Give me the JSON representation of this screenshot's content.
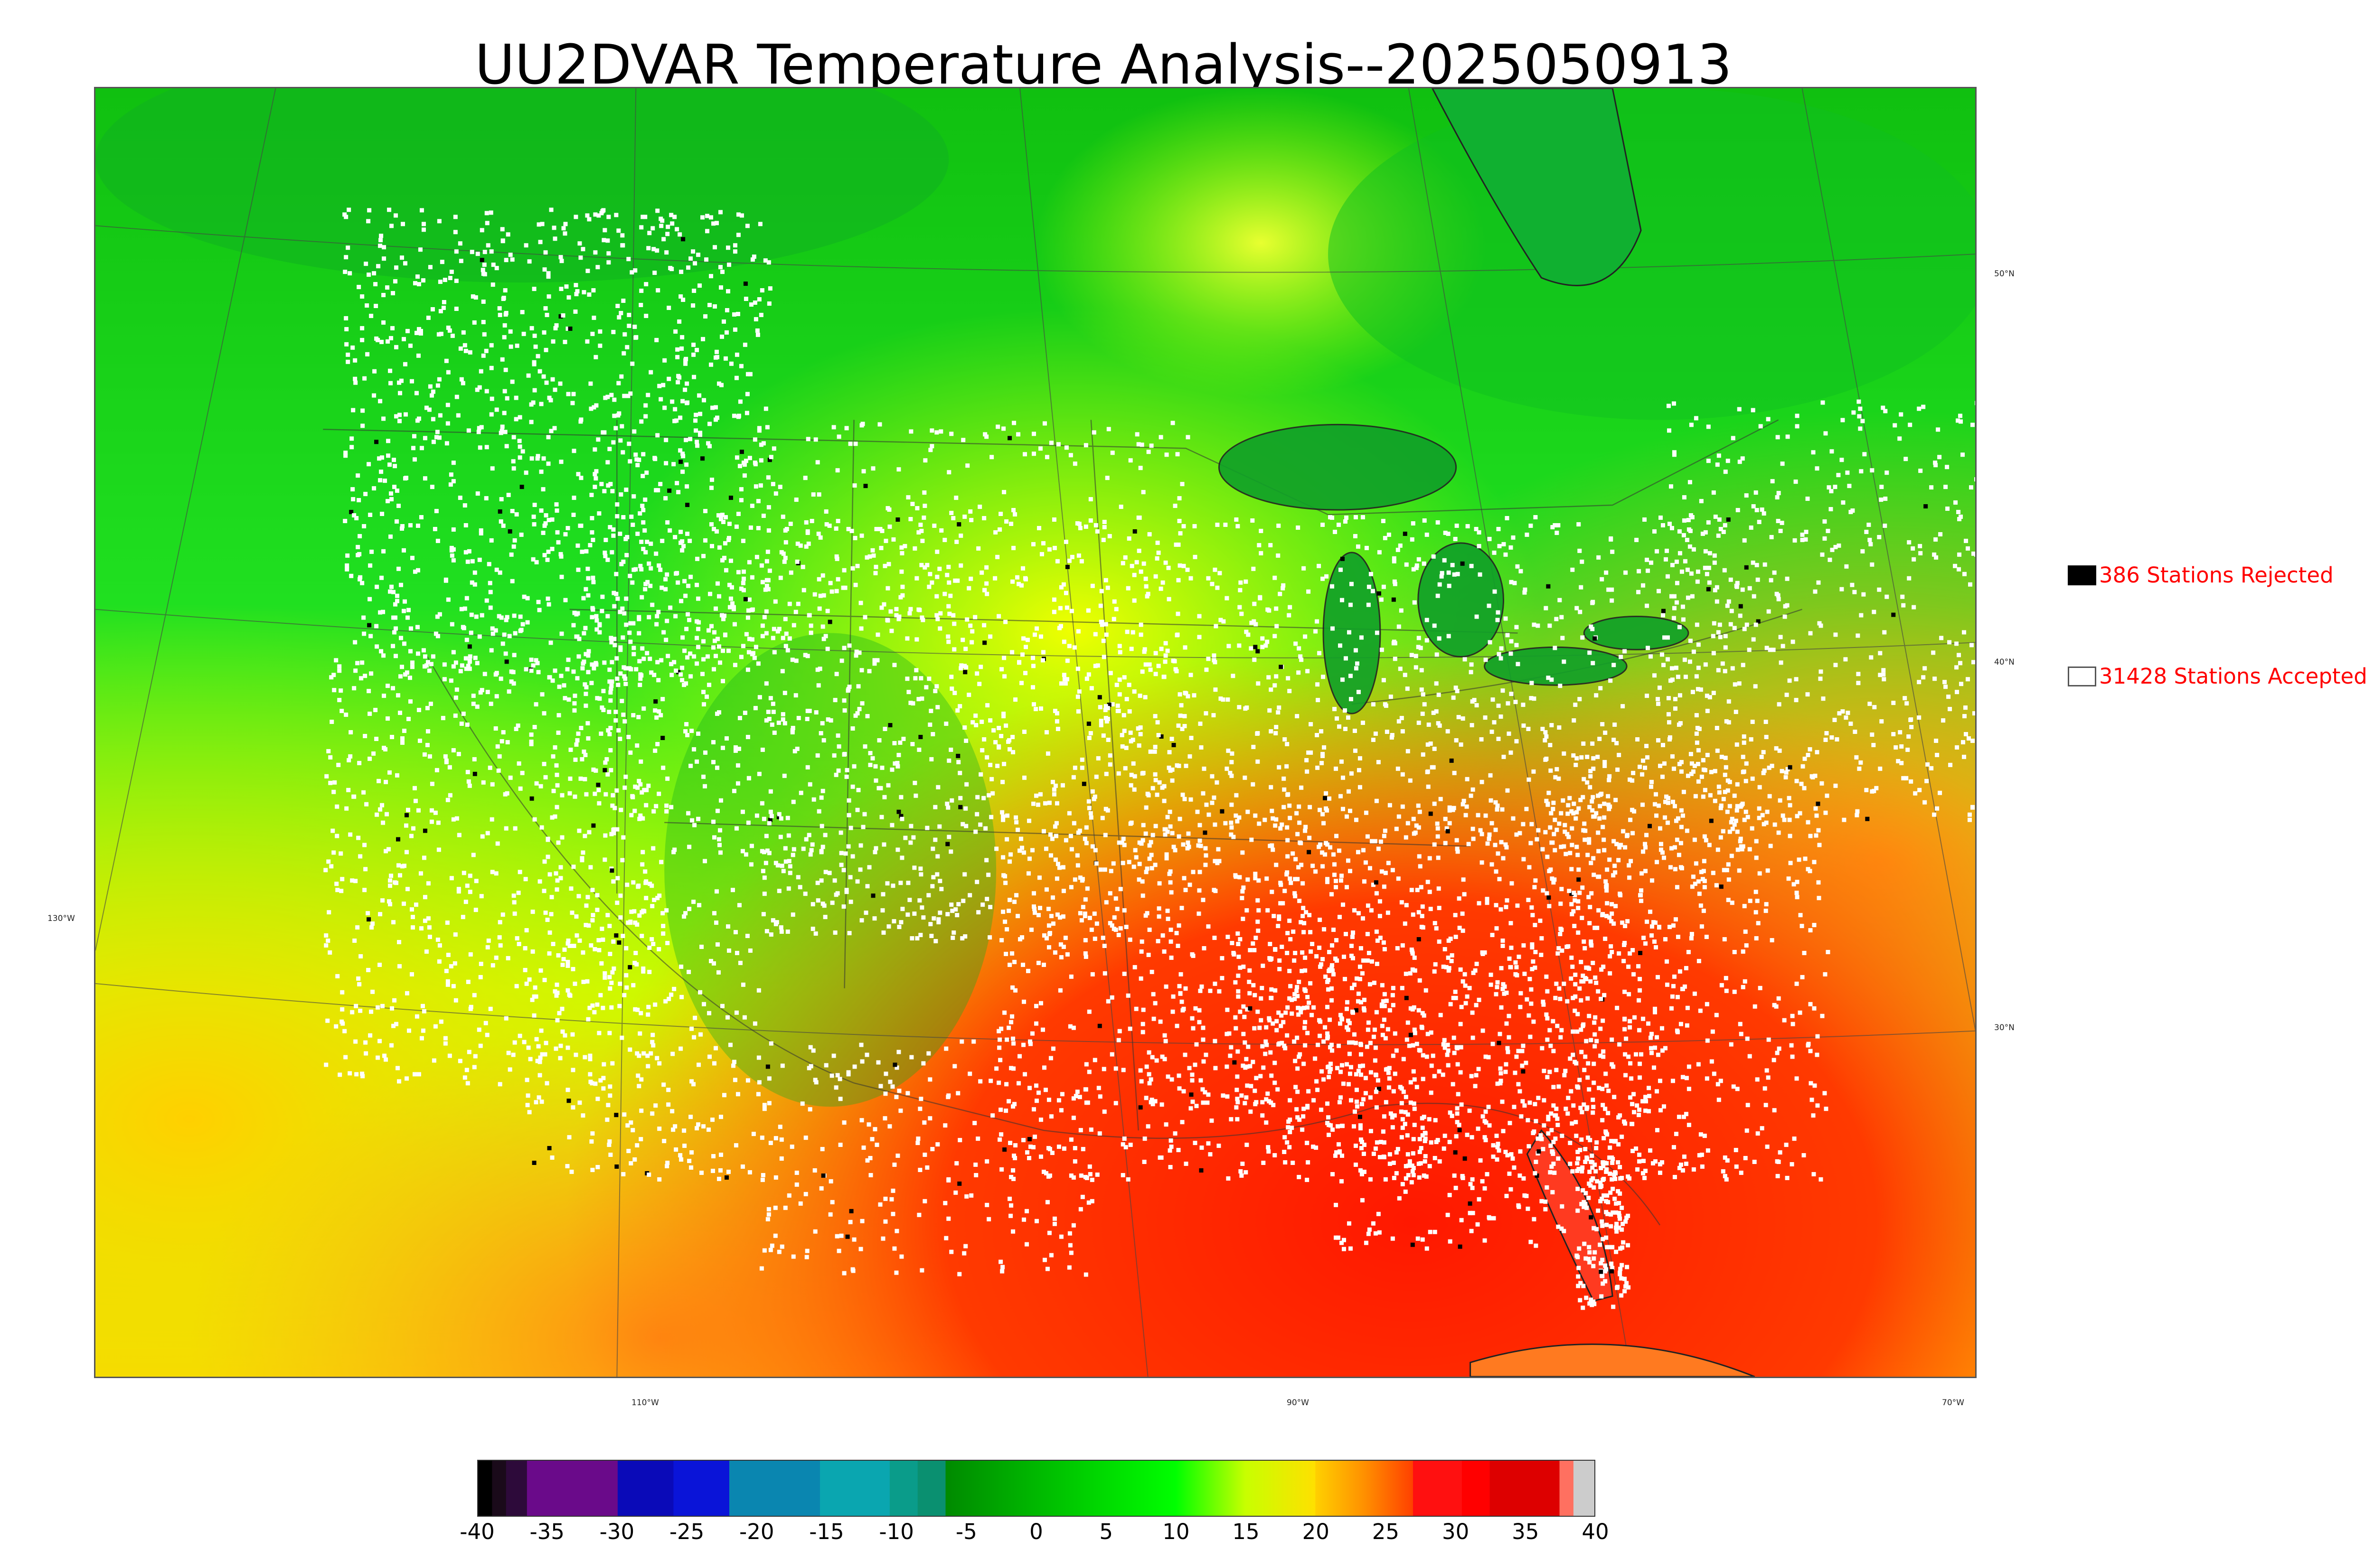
{
  "title": "UU2DVAR Temperature Analysis--2025050913",
  "legend": {
    "rejected_label": "386 Stations Rejected",
    "accepted_label": "31428 Stations Accepted"
  },
  "graticule_labels": {
    "lat_50": "50°N",
    "lat_40": "40°N",
    "lat_30": "30°N",
    "lon_130": "130°W",
    "lon_110": "110°W",
    "lon_90": "90°W",
    "lon_70": "70°W"
  },
  "colorbar": {
    "ticks": [
      "-40",
      "-35",
      "-30",
      "-25",
      "-20",
      "-15",
      "-10",
      "-5",
      "0",
      "5",
      "10",
      "15",
      "20",
      "25",
      "30",
      "35",
      "40"
    ],
    "range": [
      -40,
      40
    ],
    "segments": [
      {
        "from": -40,
        "to": -39,
        "color": "#000000"
      },
      {
        "from": -39,
        "to": -38,
        "color": "#1a0a1a"
      },
      {
        "from": -38,
        "to": -36.5,
        "color": "#2d0a3a"
      },
      {
        "from": -36.5,
        "to": -30,
        "color": "#6a0a8a"
      },
      {
        "from": -30,
        "to": -26,
        "color": "#0a0ab8"
      },
      {
        "from": -26,
        "to": -22,
        "color": "#0a14d8"
      },
      {
        "from": -22,
        "to": -15.5,
        "color": "#0a86b0"
      },
      {
        "from": -15.5,
        "to": -10.5,
        "color": "#0aa6b0"
      },
      {
        "from": -10.5,
        "to": -8.5,
        "color": "#0a9c8a"
      },
      {
        "from": -8.5,
        "to": -6.5,
        "color": "#0a9070"
      },
      {
        "from": -6.5,
        "to": 10,
        "gradient": [
          "#008a00",
          "#00ff00"
        ]
      },
      {
        "from": 10,
        "to": 20,
        "gradient": [
          "#00ff00",
          "#c8ff00",
          "#ffe000"
        ]
      },
      {
        "from": 20,
        "to": 27,
        "gradient": [
          "#ffd000",
          "#ff9000",
          "#ff4000"
        ]
      },
      {
        "from": 27,
        "to": 30.5,
        "color": "#ff1010"
      },
      {
        "from": 30.5,
        "to": 32.5,
        "color": "#ff0000"
      },
      {
        "from": 32.5,
        "to": 37.5,
        "color": "#dd0000"
      },
      {
        "from": 37.5,
        "to": 38.5,
        "color": "#ff7060"
      },
      {
        "from": 38.5,
        "to": 40,
        "color": "#cccccc"
      }
    ]
  },
  "colors": {
    "title": "#000000",
    "legend_text": "#ff0000",
    "accepted_marker": "#ffffff",
    "rejected_marker": "#000000"
  }
}
